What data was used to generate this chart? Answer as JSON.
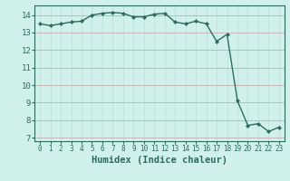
{
  "x": [
    0,
    1,
    2,
    3,
    4,
    5,
    6,
    7,
    8,
    9,
    10,
    11,
    12,
    13,
    14,
    15,
    16,
    17,
    18,
    19,
    20,
    21,
    22,
    23
  ],
  "y": [
    13.5,
    13.4,
    13.5,
    13.6,
    13.65,
    14.0,
    14.1,
    14.15,
    14.1,
    13.9,
    13.9,
    14.05,
    14.1,
    13.6,
    13.5,
    13.65,
    13.5,
    12.5,
    12.9,
    9.1,
    7.7,
    7.8,
    7.35,
    7.6
  ],
  "line_color": "#2e6b5e",
  "marker": "D",
  "marker_size": 2,
  "bg_color": "#cff0eb",
  "grid_color_v": "#c0dbd6",
  "grid_color_h": "#c0a0a0",
  "xlabel": "Humidex (Indice chaleur)",
  "ylim": [
    6.8,
    14.55
  ],
  "xlim": [
    -0.5,
    23.5
  ],
  "yticks": [
    7,
    8,
    9,
    10,
    11,
    12,
    13,
    14
  ],
  "xticks": [
    0,
    1,
    2,
    3,
    4,
    5,
    6,
    7,
    8,
    9,
    10,
    11,
    12,
    13,
    14,
    15,
    16,
    17,
    18,
    19,
    20,
    21,
    22,
    23
  ],
  "tick_color": "#2e6b5e",
  "xlabel_fontsize": 7.5,
  "ytick_fontsize": 6.5,
  "xtick_fontsize": 5.5,
  "axis_color": "#2e6b5e",
  "linewidth": 1.0
}
